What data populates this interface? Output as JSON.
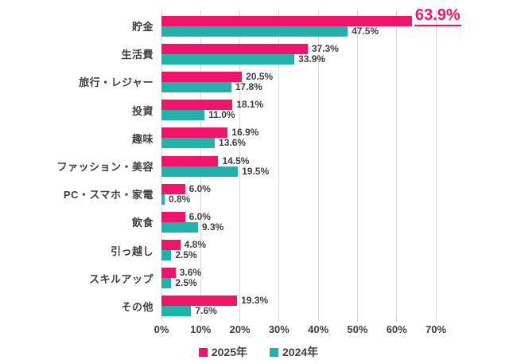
{
  "chart_data": {
    "type": "bar",
    "orientation": "horizontal",
    "title": "",
    "xlabel": "",
    "ylabel": "",
    "xlim": [
      0,
      70
    ],
    "grid": "vertical",
    "legend_position": "bottom",
    "x_ticks": [
      "0%",
      "10%",
      "20%",
      "30%",
      "40%",
      "50%",
      "60%",
      "70%"
    ],
    "series_names": [
      "2025年",
      "2024年"
    ],
    "categories": [
      "貯金",
      "生活費",
      "旅行・レジャー",
      "投資",
      "趣味",
      "ファッション・美容",
      "PC・スマホ・家電",
      "飲食",
      "引っ越し",
      "スキルアップ",
      "その他"
    ],
    "series": [
      {
        "name": "2025年",
        "color": "#F2146B",
        "values": [
          63.9,
          37.3,
          20.5,
          18.1,
          16.9,
          14.5,
          6.0,
          6.0,
          4.8,
          3.6,
          19.3
        ],
        "labels": [
          "63.9%",
          "37.3%",
          "20.5%",
          "18.1%",
          "16.9%",
          "14.5%",
          "6.0%",
          "6.0%",
          "4.8%",
          "3.6%",
          "19.3%"
        ]
      },
      {
        "name": "2024年",
        "color": "#1FB2AA",
        "values": [
          47.5,
          33.9,
          17.8,
          11.0,
          13.6,
          19.5,
          0.8,
          9.3,
          2.5,
          2.5,
          7.6
        ],
        "labels": [
          "47.5%",
          "33.9%",
          "17.8%",
          "11.0%",
          "13.6%",
          "19.5%",
          "0.8%",
          "9.3%",
          "2.5%",
          "2.5%",
          "7.6%"
        ]
      }
    ],
    "highlight": {
      "series": "2025年",
      "category": "貯金",
      "text": "63.9%",
      "style": "enlarged pink underlined"
    }
  },
  "colors": {
    "series_2025": "#F2146B",
    "series_2024": "#1FB2AA",
    "text": "#3F3F3F",
    "gridline": "#D9D9D9",
    "background": "#FFFFFF",
    "highlight_text": "#F2146B"
  }
}
